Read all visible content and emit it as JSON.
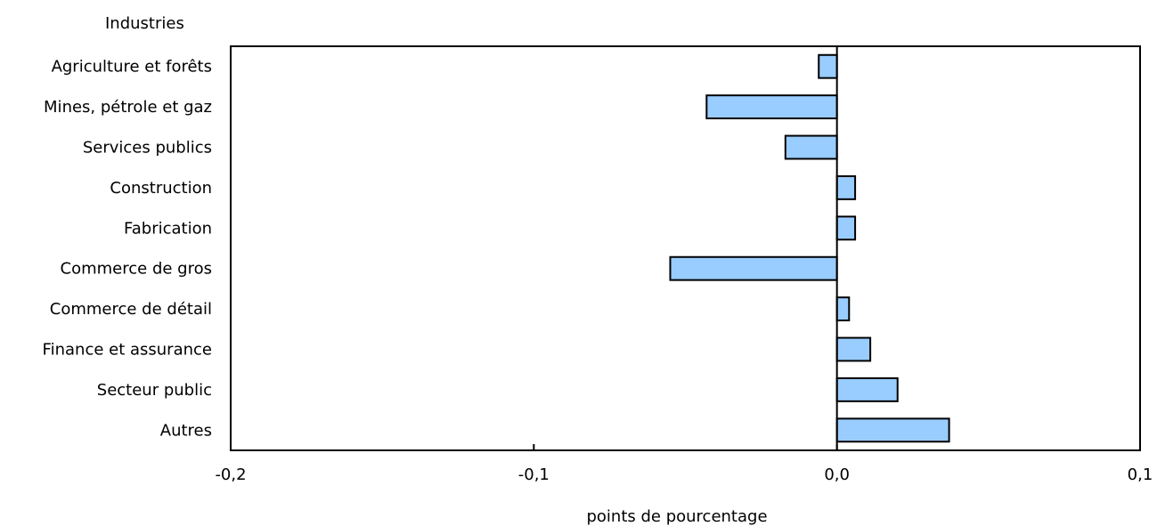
{
  "chart_data": {
    "type": "bar",
    "orientation": "horizontal",
    "ylabel": "Industries",
    "xlabel": "points de pourcentage",
    "categories": [
      "Agriculture et forêts",
      "Mines, pétrole et gaz",
      "Services publics",
      "Construction",
      "Fabrication",
      "Commerce de gros",
      "Commerce de détail",
      "Finance et assurance",
      "Secteur public",
      "Autres"
    ],
    "values": [
      -0.006,
      -0.043,
      -0.017,
      0.006,
      0.006,
      -0.055,
      0.004,
      0.011,
      0.02,
      0.037
    ],
    "xlim": [
      -0.2,
      0.1
    ],
    "xticks": [
      -0.2,
      -0.1,
      0.0,
      0.1
    ],
    "xtick_labels": [
      "-0,2",
      "-0,1",
      "0,0",
      "0,1"
    ],
    "grid": false,
    "legend": "none",
    "colors": {
      "bar": "#99ccff",
      "outline": "#000000"
    }
  }
}
